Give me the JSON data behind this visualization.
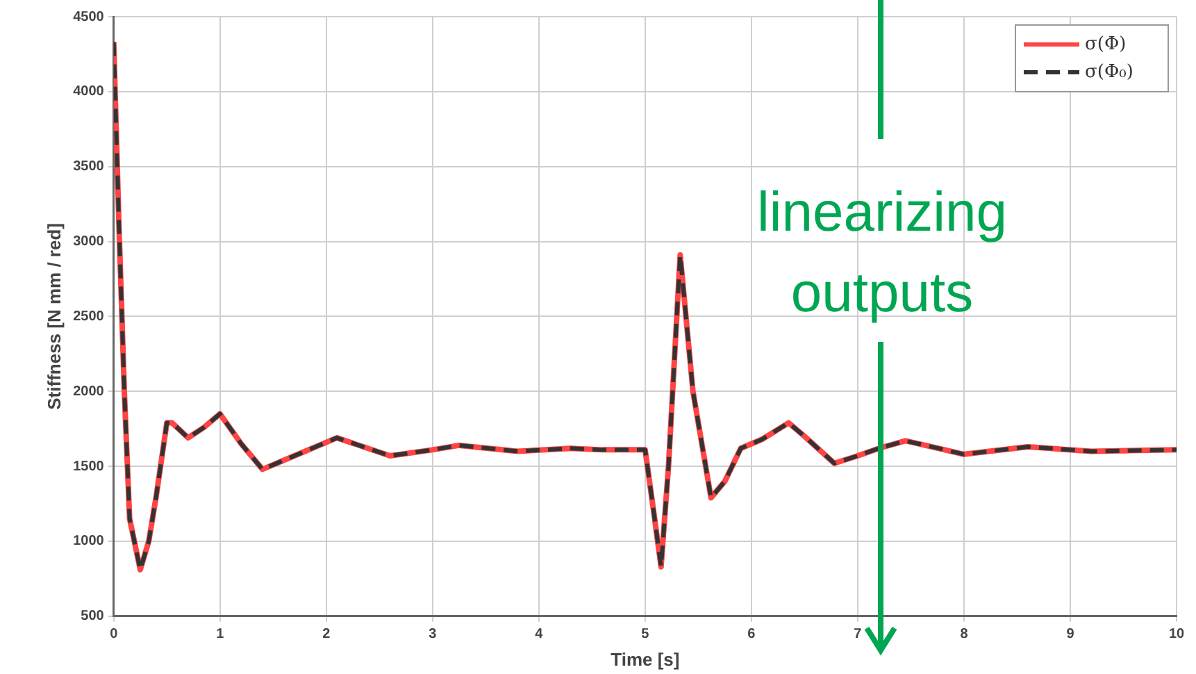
{
  "chart_data": {
    "type": "line",
    "xlabel": "Time [s]",
    "ylabel": "Stiffness [N mm / red]",
    "annotations": [
      "linearizing outputs"
    ],
    "xlim": [
      0,
      10
    ],
    "xticks": [
      0,
      1,
      2,
      3,
      4,
      5,
      6,
      7,
      8,
      9,
      10
    ],
    "ylim": [
      500,
      4500
    ],
    "yticks": [
      500,
      1000,
      1500,
      2000,
      2500,
      3000,
      3500,
      4000,
      4500
    ],
    "grid": true,
    "legend": "top right",
    "marker": "none",
    "x": [
      0,
      0.05,
      0.1,
      0.15,
      0.25,
      0.33,
      0.4,
      0.5,
      0.55,
      0.7,
      0.85,
      1.0,
      1.2,
      1.4,
      1.7,
      2.1,
      2.6,
      3.0,
      3.25,
      3.8,
      4.3,
      4.6,
      5.0,
      5.08,
      5.15,
      5.22,
      5.33,
      5.45,
      5.62,
      5.75,
      5.9,
      6.1,
      6.35,
      6.5,
      6.78,
      7.0,
      7.2,
      7.45,
      7.7,
      8.0,
      8.6,
      9.2,
      10
    ],
    "series": [
      {
        "name": "σ(Φ)",
        "color": "#ff4444",
        "line_style": "solid",
        "values": [
          4330,
          3100,
          2000,
          1150,
          810,
          1000,
          1300,
          1790,
          1790,
          1690,
          1760,
          1850,
          1650,
          1480,
          1570,
          1690,
          1570,
          1610,
          1640,
          1600,
          1620,
          1610,
          1610,
          1200,
          830,
          1500,
          2910,
          2000,
          1290,
          1400,
          1620,
          1680,
          1790,
          1700,
          1520,
          1570,
          1620,
          1670,
          1630,
          1580,
          1630,
          1600,
          1610
        ]
      },
      {
        "name": "σ(Φ₀)",
        "color": "#333333",
        "line_style": "dashed",
        "values": [
          4330,
          3100,
          2000,
          1150,
          810,
          1000,
          1300,
          1790,
          1790,
          1690,
          1760,
          1850,
          1650,
          1480,
          1570,
          1690,
          1570,
          1610,
          1640,
          1600,
          1620,
          1610,
          1610,
          1200,
          830,
          1500,
          2910,
          2000,
          1290,
          1400,
          1620,
          1680,
          1790,
          1700,
          1520,
          1570,
          1620,
          1670,
          1630,
          1580,
          1630,
          1600,
          1610
        ]
      }
    ]
  }
}
